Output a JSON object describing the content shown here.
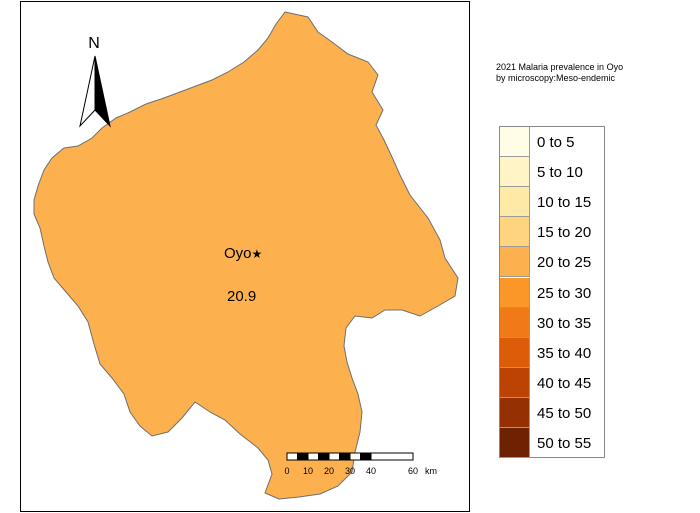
{
  "map": {
    "north_label": "N",
    "region": {
      "name": "Oyo",
      "value": "20.9",
      "fill": "#fdb14e",
      "marker": "★"
    },
    "scale_bar": {
      "ticks": [
        "0",
        "10",
        "20",
        "30",
        "40",
        "60"
      ],
      "unit": "km"
    }
  },
  "legend": {
    "title_line1": "2021 Malaria prevalence in Oyo",
    "title_line2": "by microscopy:Meso-endemic",
    "items": [
      {
        "label": "0 to 5",
        "color": "#fffde5"
      },
      {
        "label": "5 to 10",
        "color": "#fff4c6"
      },
      {
        "label": "10 to 15",
        "color": "#ffe9a6"
      },
      {
        "label": "15 to 20",
        "color": "#fed57e"
      },
      {
        "label": "20 to 25",
        "color": "#fdb14e"
      },
      {
        "label": "25 to 30",
        "color": "#fb9628"
      },
      {
        "label": "30 to 35",
        "color": "#ef7a17"
      },
      {
        "label": "35 to 40",
        "color": "#dc5c0a"
      },
      {
        "label": "40 to 45",
        "color": "#bc4304"
      },
      {
        "label": "45 to 50",
        "color": "#953002"
      },
      {
        "label": "50 to 55",
        "color": "#6f2202"
      }
    ]
  }
}
